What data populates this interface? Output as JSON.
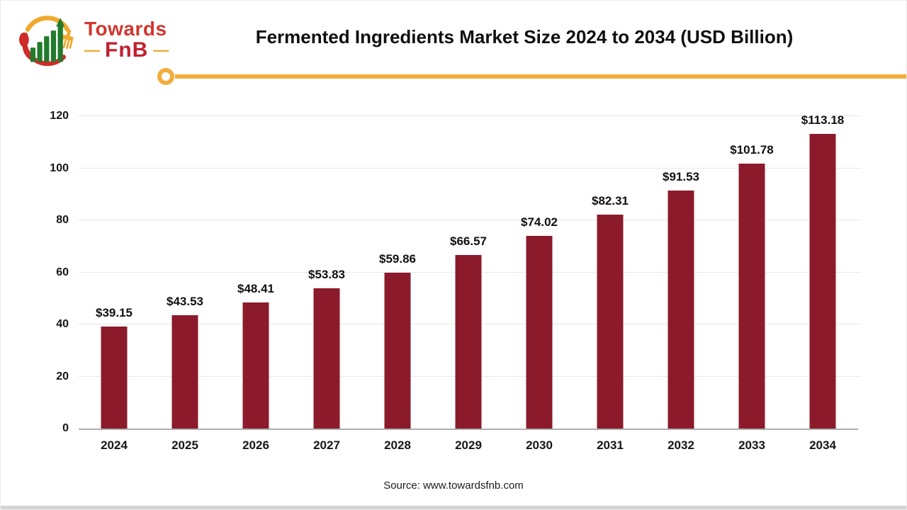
{
  "header": {
    "logo": {
      "name": "Towards FnB",
      "line1": "Towards",
      "line2": "FnB",
      "dash": "—"
    },
    "title": "Fermented Ingredients Market Size 2024 to 2034 (USD Billion)"
  },
  "chart_data": {
    "type": "bar",
    "title": "Fermented Ingredients Market Size 2024 to 2034 (USD Billion)",
    "categories": [
      "2024",
      "2025",
      "2026",
      "2027",
      "2028",
      "2029",
      "2030",
      "2031",
      "2032",
      "2033",
      "2034"
    ],
    "values": [
      39.15,
      43.53,
      48.41,
      53.83,
      59.86,
      66.57,
      74.02,
      82.31,
      91.53,
      101.78,
      113.18
    ],
    "value_labels": [
      "$39.15",
      "$43.53",
      "$48.41",
      "$53.83",
      "$59.86",
      "$66.57",
      "$74.02",
      "$82.31",
      "$91.53",
      "$101.78",
      "$113.18"
    ],
    "xlabel": "",
    "ylabel": "",
    "ylim": [
      0,
      120
    ],
    "yticks": [
      0,
      20,
      40,
      60,
      80,
      100,
      120
    ],
    "grid": true,
    "legend": "none",
    "bar_color": "#8b1b2b"
  },
  "style": {
    "accent_yellow": "#f3ad3d",
    "logo_red": "#d2362e",
    "logo_dark_red": "#c1202f",
    "logo_green": "#237a2d",
    "bar_color": "#8b1b2b",
    "gridline_color": "#e8e8e8",
    "axis_color": "#aeaeae"
  },
  "footer": {
    "source": "Source: www.towardsfnb.com"
  }
}
